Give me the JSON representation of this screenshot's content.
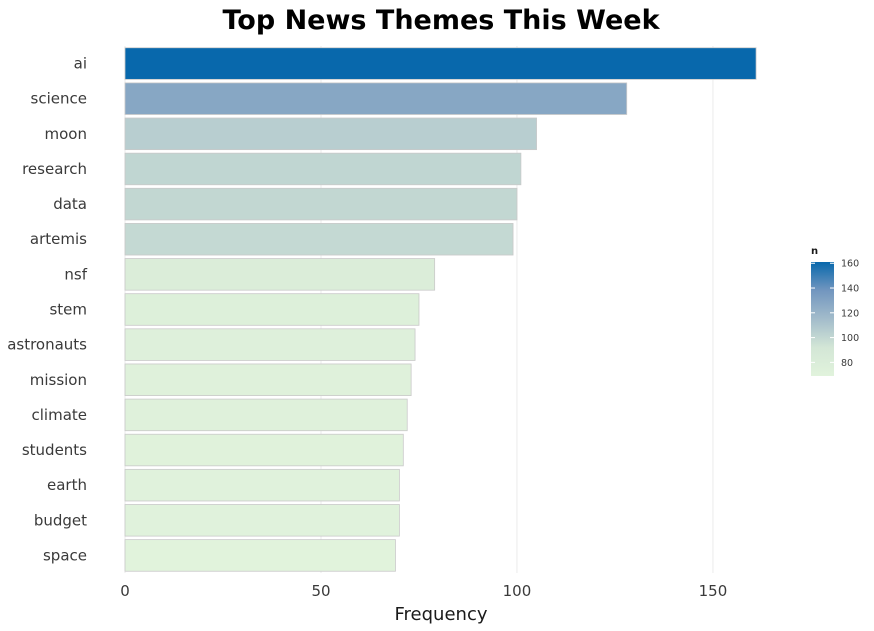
{
  "chart_data": {
    "type": "bar",
    "orientation": "horizontal",
    "title": "Top News Themes This Week",
    "xlabel": "Frequency",
    "ylabel": "",
    "xlim": [
      0,
      162
    ],
    "xticks": [
      0,
      50,
      100,
      150
    ],
    "grid": true,
    "categories": [
      "ai",
      "science",
      "moon",
      "research",
      "data",
      "artemis",
      "nsf",
      "stem",
      "astronauts",
      "mission",
      "climate",
      "students",
      "earth",
      "budget",
      "space"
    ],
    "values": [
      161,
      128,
      105,
      101,
      100,
      99,
      79,
      75,
      74,
      73,
      72,
      71,
      70,
      70,
      69
    ],
    "legend": {
      "title": "n",
      "placement": "right",
      "ticks": [
        80,
        100,
        120,
        140,
        160
      ],
      "range": [
        69,
        161
      ],
      "colors": [
        "#e1f3dc",
        "#d3e6d6",
        "#a3bccb",
        "#7296bf",
        "#0868ac"
      ]
    }
  }
}
